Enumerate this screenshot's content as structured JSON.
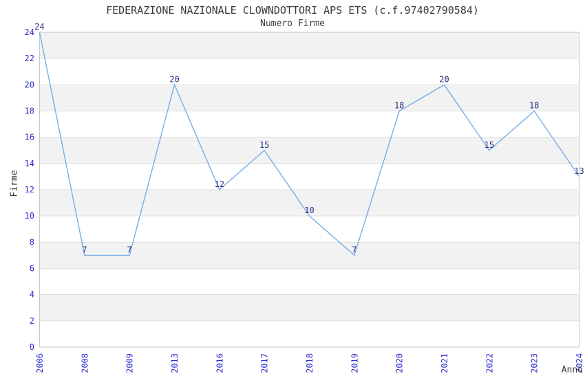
{
  "chart_data": {
    "type": "line",
    "title": "FEDERAZIONE NAZIONALE CLOWNDOTTORI APS ETS (c.f.97402790584)",
    "subtitle": "Numero Firme",
    "xlabel": "Anno",
    "ylabel": "Firme",
    "categories": [
      "2006",
      "2008",
      "2009",
      "2013",
      "2016",
      "2017",
      "2018",
      "2019",
      "2020",
      "2021",
      "2022",
      "2023",
      "2024"
    ],
    "series": [
      {
        "name": "Numero Firme",
        "values": [
          24,
          7,
          7,
          20,
          12,
          15,
          10,
          7,
          18,
          20,
          15,
          18,
          13
        ]
      }
    ],
    "ylim": [
      0,
      24
    ],
    "ytick_step": 2,
    "yticks": [
      0,
      2,
      4,
      6,
      8,
      10,
      12,
      14,
      16,
      18,
      20,
      22,
      24
    ],
    "data_labels_visible": true,
    "legend": "none",
    "grid": "horizontal-bands-every-2-units",
    "x_tick_rotation_deg": 90,
    "colors": {
      "line": "#76ade8",
      "tick_label": "#2d2dcd",
      "data_label": "#2c2c85",
      "band_gray": "#f2f2f2",
      "band_white": "#ffffff",
      "gridline": "#dddddd",
      "spine": "#c8c8c8",
      "title_text": "#3a3a3a",
      "background": "#ffffff"
    }
  }
}
